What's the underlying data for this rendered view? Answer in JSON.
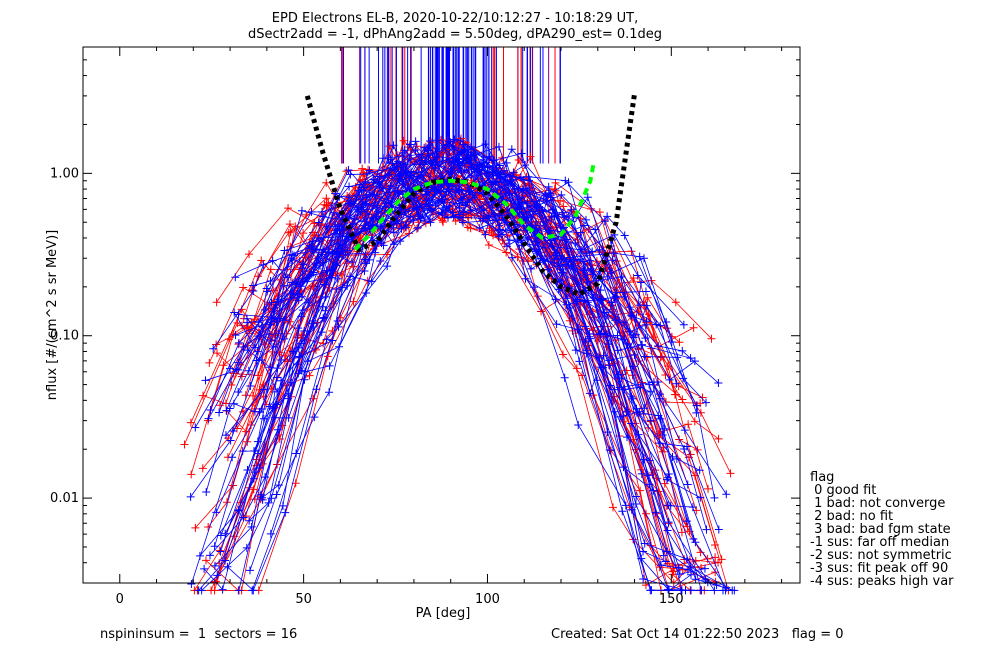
{
  "chart_data": {
    "type": "line",
    "title_line1": "EPD Electrons EL-B, 2020-10-22/10:12:27 - 10:18:29 UT,",
    "title_line2": "dSectr2add = -1, dPhAng2add = 5.50deg, dPA290_est=   0.1deg",
    "xlabel": "PA [deg]",
    "ylabel": "nflux [#/(cm^2 s sr MeV)]",
    "xlim": [
      -10,
      185
    ],
    "ylim": [
      0.003,
      6
    ],
    "yscale": "log",
    "xticks": [
      0,
      50,
      100,
      150
    ],
    "xtick_labels": [
      "0",
      "50",
      "100",
      "150"
    ],
    "yticks": [
      0.01,
      0.1,
      1.0
    ],
    "ytick_labels": [
      "0.01",
      "0.10",
      "1.00"
    ],
    "colors": {
      "red": "#ff0000",
      "blue": "#0000ff",
      "black": "#000000",
      "green": "#00ff00",
      "purple": "#800080"
    },
    "fits": [
      {
        "style": "black-dotted",
        "x": [
          51,
          55,
          60,
          65,
          70,
          75,
          80,
          85,
          90,
          95,
          100,
          105,
          110,
          115,
          120,
          125,
          130,
          135,
          140
        ],
        "y": [
          3.0,
          1.4,
          0.6,
          0.34,
          0.38,
          0.55,
          0.75,
          0.88,
          0.92,
          0.88,
          0.75,
          0.55,
          0.37,
          0.25,
          0.2,
          0.18,
          0.21,
          0.5,
          3.1
        ]
      },
      {
        "style": "green-dashed",
        "x": [
          64,
          68,
          72,
          76,
          80,
          85,
          90,
          95,
          100,
          105,
          110,
          115,
          120,
          124,
          128,
          129
        ],
        "y": [
          0.34,
          0.42,
          0.54,
          0.68,
          0.8,
          0.88,
          0.9,
          0.88,
          0.8,
          0.65,
          0.48,
          0.4,
          0.42,
          0.55,
          0.9,
          1.2
        ]
      }
    ],
    "peak_markers": {
      "x_range": [
        60,
        120
      ],
      "y_base": 1.15,
      "y_top": 5.5
    }
  },
  "legend": {
    "title": "flag",
    "entries": [
      " 0 good fit",
      " 1 bad: not converge",
      " 2 bad: no fit",
      " 3 bad: bad fgm state",
      "-1 sus: far off median",
      "-2 sus: not symmetric",
      "-3 sus: fit peak off 90",
      "-4 sus: peaks high var"
    ]
  },
  "footer": {
    "left": "nspininsum =  1  sectors = 16",
    "right": "Created: Sat Oct 14 01:22:50 2023   flag = 0"
  }
}
